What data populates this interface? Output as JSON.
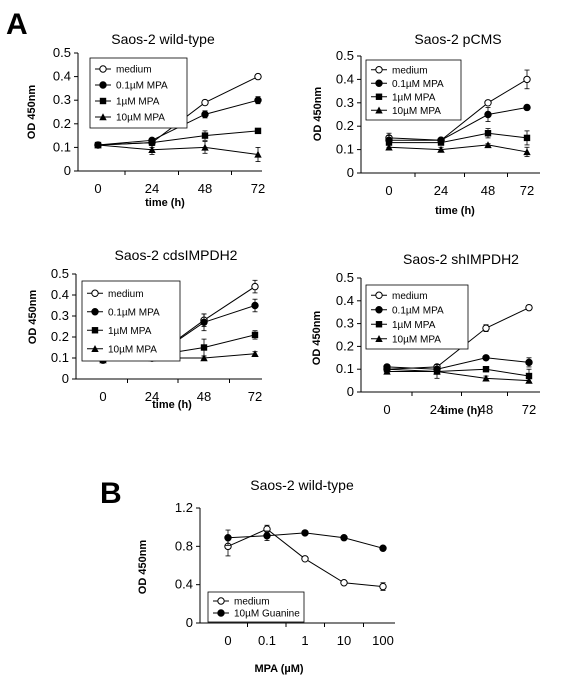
{
  "figure": {
    "panel_labels": [
      "A",
      "B"
    ]
  },
  "chart_data": [
    {
      "type": "line",
      "panel": "A",
      "title": "Saos-2 wild-type",
      "xlabel": "time (h)",
      "ylabel": "OD 450nm",
      "x": [
        0,
        24,
        48,
        72
      ],
      "x_tick_labels": [
        "0",
        "24",
        "48",
        "72"
      ],
      "ylim": [
        0,
        0.5
      ],
      "y_ticks": [
        "0",
        "0.1",
        "0.2",
        "0.3",
        "0.4",
        "0.5"
      ],
      "legend_position": "top-left",
      "series": [
        {
          "name": "medium",
          "marker": "circle-open",
          "values": [
            0.11,
            0.12,
            0.29,
            0.4
          ],
          "errors": [
            0.005,
            0.01,
            0.01,
            0.005
          ]
        },
        {
          "name": "0.1µM MPA",
          "marker": "circle-filled",
          "values": [
            0.11,
            0.13,
            0.24,
            0.3
          ],
          "errors": [
            0.005,
            0.01,
            0.015,
            0.015
          ]
        },
        {
          "name": "1µM MPA",
          "marker": "square-filled",
          "values": [
            0.11,
            0.12,
            0.15,
            0.17
          ],
          "errors": [
            0.005,
            0.02,
            0.02,
            0.005
          ]
        },
        {
          "name": "10µM MPA",
          "marker": "triangle-filled",
          "values": [
            0.11,
            0.09,
            0.1,
            0.07
          ],
          "errors": [
            0.01,
            0.02,
            0.025,
            0.03
          ]
        }
      ]
    },
    {
      "type": "line",
      "panel": "A",
      "title": "Saos-2 pCMS",
      "xlabel": "time (h)",
      "ylabel": "OD 450nm",
      "x": [
        0,
        24,
        48,
        72
      ],
      "x_tick_labels": [
        "0",
        "24",
        "48",
        "72"
      ],
      "ylim": [
        0,
        0.5
      ],
      "y_ticks": [
        "0",
        "0.1",
        "0.2",
        "0.3",
        "0.4",
        "0.5"
      ],
      "legend_position": "top-left",
      "series": [
        {
          "name": "medium",
          "marker": "circle-open",
          "values": [
            0.15,
            0.14,
            0.3,
            0.4
          ],
          "errors": [
            0.02,
            0.01,
            0.01,
            0.04
          ]
        },
        {
          "name": "0.1µM MPA",
          "marker": "circle-filled",
          "values": [
            0.14,
            0.14,
            0.25,
            0.28
          ],
          "errors": [
            0.02,
            0.01,
            0.03,
            0.01
          ]
        },
        {
          "name": "1µM MPA",
          "marker": "square-filled",
          "values": [
            0.13,
            0.13,
            0.17,
            0.15
          ],
          "errors": [
            0.02,
            0.01,
            0.02,
            0.03
          ]
        },
        {
          "name": "10µM MPA",
          "marker": "triangle-filled",
          "values": [
            0.11,
            0.1,
            0.12,
            0.09
          ],
          "errors": [
            0.01,
            0.01,
            0.005,
            0.02
          ]
        }
      ]
    },
    {
      "type": "line",
      "panel": "A",
      "title": "Saos-2 cdsIMPDH2",
      "xlabel": "time (h)",
      "ylabel": "OD 450nm",
      "x": [
        0,
        24,
        48,
        72
      ],
      "x_tick_labels": [
        "0",
        "24",
        "48",
        "72"
      ],
      "ylim": [
        0,
        0.5
      ],
      "y_ticks": [
        "0",
        "0.1",
        "0.2",
        "0.3",
        "0.4",
        "0.5"
      ],
      "legend_position": "top-left",
      "series": [
        {
          "name": "medium",
          "marker": "circle-open",
          "values": [
            0.09,
            0.1,
            0.28,
            0.44
          ],
          "errors": [
            0.01,
            0.01,
            0.03,
            0.03
          ]
        },
        {
          "name": "0.1µM MPA",
          "marker": "circle-filled",
          "values": [
            0.09,
            0.1,
            0.27,
            0.35
          ],
          "errors": [
            0.01,
            0.01,
            0.04,
            0.03
          ]
        },
        {
          "name": "1µM MPA",
          "marker": "square-filled",
          "values": [
            0.1,
            0.11,
            0.15,
            0.21
          ],
          "errors": [
            0.01,
            0.01,
            0.04,
            0.02
          ]
        },
        {
          "name": "10µM MPA",
          "marker": "triangle-filled",
          "values": [
            0.09,
            0.1,
            0.1,
            0.12
          ],
          "errors": [
            0.01,
            0.01,
            0.01,
            0.01
          ]
        }
      ]
    },
    {
      "type": "line",
      "panel": "A",
      "title": "Saos-2 shIMPDH2",
      "xlabel": "time (h)",
      "ylabel": "OD 450nm",
      "x": [
        0,
        24,
        48,
        72
      ],
      "x_tick_labels": [
        "0",
        "24",
        "48",
        "72"
      ],
      "ylim": [
        0,
        0.5
      ],
      "y_ticks": [
        "0",
        "0.1",
        "0.2",
        "0.3",
        "0.4",
        "0.5"
      ],
      "legend_position": "top-left",
      "series": [
        {
          "name": "medium",
          "marker": "circle-open",
          "values": [
            0.1,
            0.11,
            0.28,
            0.37
          ],
          "errors": [
            0.01,
            0.01,
            0.015,
            0.005
          ]
        },
        {
          "name": "0.1µM MPA",
          "marker": "circle-filled",
          "values": [
            0.11,
            0.1,
            0.15,
            0.13
          ],
          "errors": [
            0.01,
            0.02,
            0.01,
            0.02
          ]
        },
        {
          "name": "1µM MPA",
          "marker": "square-filled",
          "values": [
            0.1,
            0.09,
            0.1,
            0.07
          ],
          "errors": [
            0.01,
            0.03,
            0.01,
            0.03
          ]
        },
        {
          "name": "10µM MPA",
          "marker": "triangle-filled",
          "values": [
            0.09,
            0.09,
            0.06,
            0.05
          ],
          "errors": [
            0.01,
            0.01,
            0.01,
            0.01
          ]
        }
      ]
    },
    {
      "type": "line",
      "panel": "B",
      "title": "Saos-2 wild-type",
      "xlabel": "MPA (µM)",
      "ylabel": "OD 450nm",
      "x": [
        0,
        0.1,
        1,
        10,
        100
      ],
      "x_tick_labels": [
        "0",
        "0.1",
        "1",
        "10",
        "100"
      ],
      "ylim": [
        0,
        1.2
      ],
      "y_ticks": [
        "0",
        "0.4",
        "0.8",
        "1.2"
      ],
      "legend_position": "bottom-left",
      "series": [
        {
          "name": "medium",
          "marker": "circle-open",
          "values": [
            0.8,
            0.98,
            0.67,
            0.42,
            0.38
          ],
          "errors": [
            0.1,
            0.04,
            0.02,
            0.01,
            0.04
          ]
        },
        {
          "name": "10µM Guanine",
          "marker": "circle-filled",
          "values": [
            0.89,
            0.91,
            0.94,
            0.89,
            0.78
          ],
          "errors": [
            0.08,
            0.05,
            0.01,
            0.01,
            0.01
          ]
        }
      ]
    }
  ]
}
